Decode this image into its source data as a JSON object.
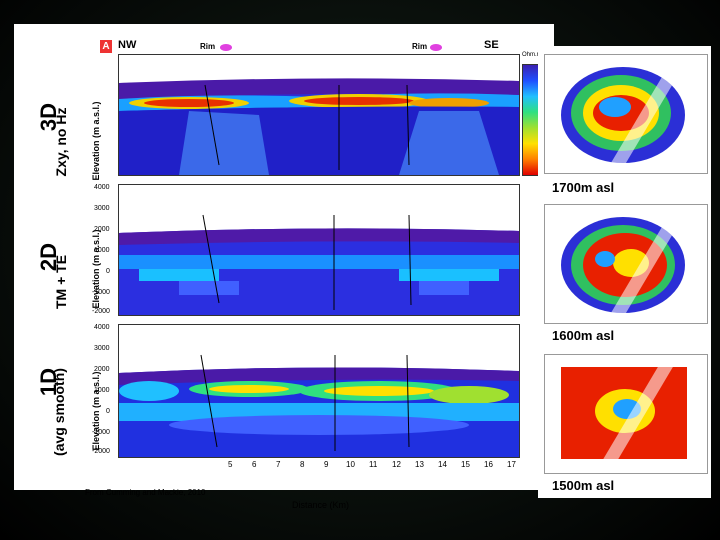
{
  "panels": [
    {
      "id": "3d",
      "label": "3D",
      "sublabel": "Zxy, no Hz",
      "elev_label": "Elevation (m a.s.l.)"
    },
    {
      "id": "2d",
      "label": "2D",
      "sublabel": "TM + TE",
      "elev_label": "Elevation (m a.s.l.)"
    },
    {
      "id": "1d",
      "label": "1D",
      "sublabel": "(avg smooth)",
      "elev_label": "Elevation (m a.s.l.)"
    }
  ],
  "header": {
    "tag": "A",
    "nw": "NW",
    "se": "SE",
    "rim": "Rim",
    "legend_title": "Ohm.m"
  },
  "y_ticks": [
    "4000",
    "3000",
    "2000",
    "1000",
    "0",
    "-1000",
    "-2000"
  ],
  "x_ticks": [
    "5",
    "6",
    "7",
    "8",
    "9",
    "10",
    "11",
    "12",
    "13",
    "14",
    "15",
    "16",
    "17"
  ],
  "x_label": "Distance (Km)",
  "credit": "From Cumming and Mackie, 2010",
  "maps": [
    {
      "caption": "1700m asl"
    },
    {
      "caption": "1600m asl"
    },
    {
      "caption": "1500m asl"
    }
  ]
}
